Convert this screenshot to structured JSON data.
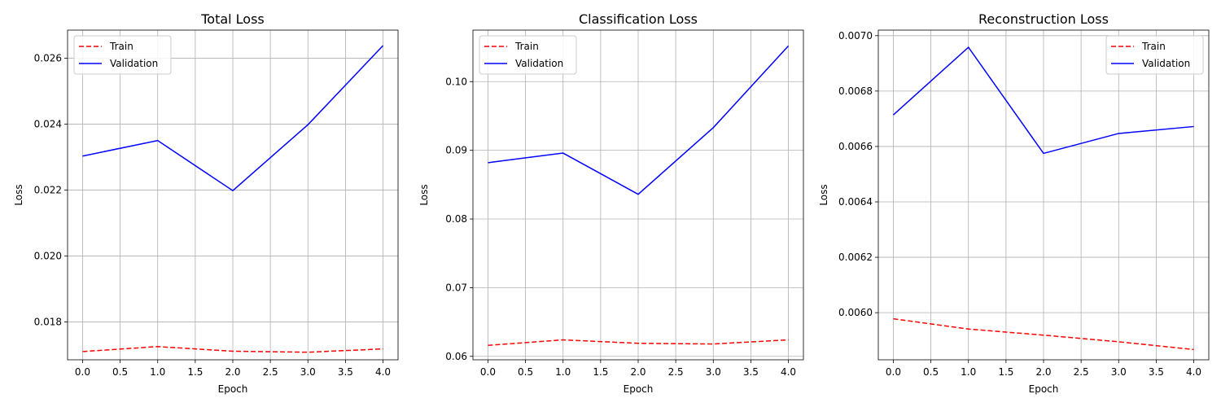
{
  "chart_data": [
    {
      "type": "line",
      "title": "Total Loss",
      "xlabel": "Epoch",
      "ylabel": "Loss",
      "x": [
        0,
        1,
        2,
        3,
        4
      ],
      "xticks": [
        0.0,
        0.5,
        1.0,
        1.5,
        2.0,
        2.5,
        3.0,
        3.5,
        4.0
      ],
      "xlim": [
        -0.2,
        4.2
      ],
      "ylim": [
        0.01685,
        0.02685
      ],
      "yticks": [
        0.018,
        0.02,
        0.022,
        0.024,
        0.026
      ],
      "grid": true,
      "legend_position": "upper-left",
      "series": [
        {
          "name": "Train",
          "color": "#ff0000",
          "dash": "dashed",
          "values": [
            0.0171,
            0.01725,
            0.01711,
            0.01708,
            0.01718
          ]
        },
        {
          "name": "Validation",
          "color": "#0000ff",
          "dash": "solid",
          "values": [
            0.02303,
            0.0235,
            0.02198,
            0.02398,
            0.02638
          ]
        }
      ]
    },
    {
      "type": "line",
      "title": "Classification Loss",
      "xlabel": "Epoch",
      "ylabel": "Loss",
      "x": [
        0,
        1,
        2,
        3,
        4
      ],
      "xticks": [
        0.0,
        0.5,
        1.0,
        1.5,
        2.0,
        2.5,
        3.0,
        3.5,
        4.0
      ],
      "xlim": [
        -0.2,
        4.2
      ],
      "ylim": [
        0.0595,
        0.1075
      ],
      "yticks": [
        0.06,
        0.07,
        0.08,
        0.09,
        0.1
      ],
      "grid": true,
      "legend_position": "upper-left",
      "series": [
        {
          "name": "Train",
          "color": "#ff0000",
          "dash": "dashed",
          "values": [
            0.0616,
            0.0624,
            0.0619,
            0.0618,
            0.0624
          ]
        },
        {
          "name": "Validation",
          "color": "#0000ff",
          "dash": "solid",
          "values": [
            0.0882,
            0.0896,
            0.0836,
            0.0933,
            0.1052
          ]
        }
      ]
    },
    {
      "type": "line",
      "title": "Reconstruction Loss",
      "xlabel": "Epoch",
      "ylabel": "Loss",
      "x": [
        0,
        1,
        2,
        3,
        4
      ],
      "xticks": [
        0.0,
        0.5,
        1.0,
        1.5,
        2.0,
        2.5,
        3.0,
        3.5,
        4.0
      ],
      "xlim": [
        -0.2,
        4.2
      ],
      "ylim": [
        0.00583,
        0.00702
      ],
      "yticks": [
        0.006,
        0.0062,
        0.0064,
        0.0066,
        0.0068,
        0.007
      ],
      "grid": true,
      "legend_position": "upper-right",
      "series": [
        {
          "name": "Train",
          "color": "#ff0000",
          "dash": "dashed",
          "values": [
            0.005978,
            0.005941,
            0.005919,
            0.005895,
            0.005867
          ]
        },
        {
          "name": "Validation",
          "color": "#0000ff",
          "dash": "solid",
          "values": [
            0.006714,
            0.006958,
            0.006575,
            0.006647,
            0.006672
          ]
        }
      ]
    }
  ]
}
